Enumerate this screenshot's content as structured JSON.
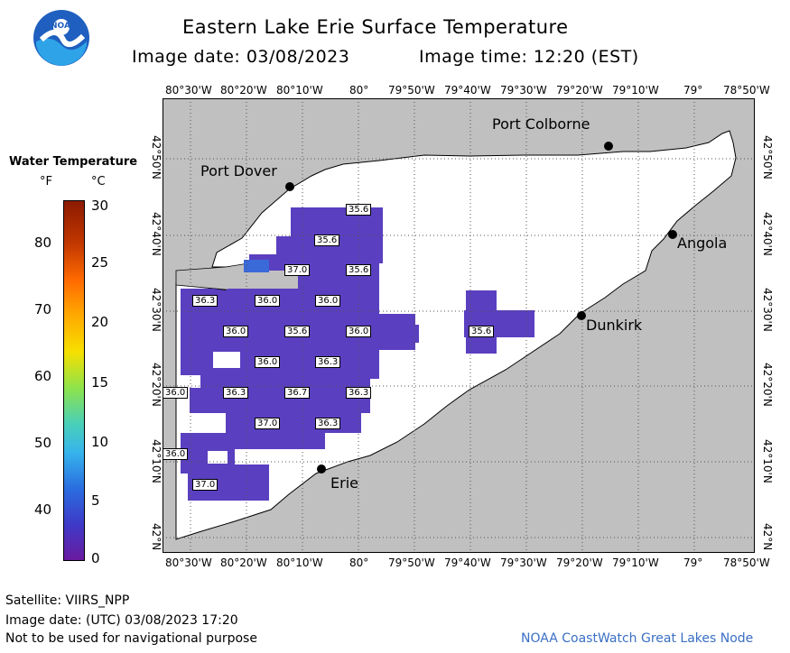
{
  "header": {
    "title": "Eastern Lake Erie Surface Temperature",
    "image_date": "Image date: 03/08/2023",
    "image_time": "Image time: 12:20 (EST)"
  },
  "logo": {
    "text": "NOAA"
  },
  "legend": {
    "title": "Water Temperature",
    "unit_f": "°F",
    "unit_c": "°C",
    "f_ticks": [
      "80",
      "70",
      "60",
      "50",
      "40"
    ],
    "c_ticks": [
      "30",
      "25",
      "20",
      "15",
      "10",
      "5",
      "0"
    ]
  },
  "axes": {
    "lon_labels": [
      "80°30'W",
      "80°20'W",
      "80°10'W",
      "80°",
      "79°50'W",
      "79°40'W",
      "79°30'W",
      "79°20'W",
      "79°10'W",
      "79°",
      "78°50'W"
    ],
    "lat_labels": [
      "42°50'N",
      "42°40'N",
      "42°30'N",
      "42°20'N",
      "42°10'N",
      "42°N"
    ]
  },
  "places": [
    {
      "name": "Port Colborne"
    },
    {
      "name": "Port Dover"
    },
    {
      "name": "Angola"
    },
    {
      "name": "Dunkirk"
    },
    {
      "name": "Erie"
    }
  ],
  "temperature_labels": [
    "35.6",
    "35.6",
    "37.0",
    "35.6",
    "36.3",
    "36.0",
    "36.0",
    "36.0",
    "35.6",
    "36.0",
    "35.6",
    "36.0",
    "36.3",
    "36.0",
    "36.3",
    "36.7",
    "36.3",
    "37.0",
    "36.3",
    "36.0",
    "37.0"
  ],
  "footer": {
    "satellite": "Satellite: VIIRS_NPP",
    "utc_date": "Image date: (UTC) 03/08/2023  17:20",
    "disclaimer": "Not to be used for navigational purpose",
    "credit": "NOAA CoastWatch Great Lakes Node"
  },
  "colors": {
    "land": "#c0c0c0",
    "water": "#ffffff",
    "cold_water": "#5a3fc0",
    "warm_patch": "#3a6ad8"
  }
}
